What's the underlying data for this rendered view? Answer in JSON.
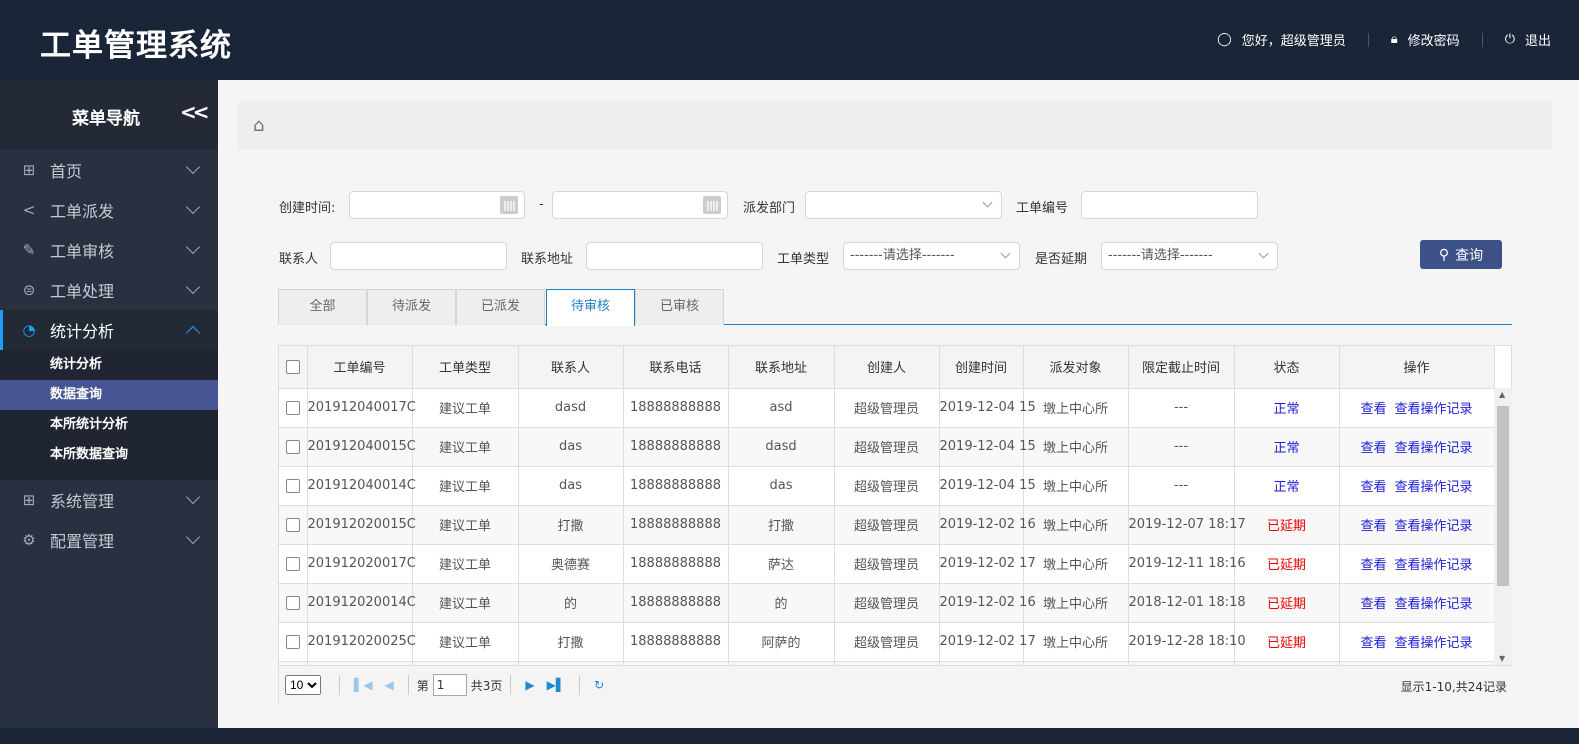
{
  "header": {
    "title": "工单管理系统",
    "greeting": "您好，超级管理员",
    "change_password": "修改密码",
    "logout": "退出"
  },
  "sidebar": {
    "title": "菜单导航",
    "items": [
      {
        "label": "首页",
        "icon": "grid-icon"
      },
      {
        "label": "工单派发",
        "icon": "share-icon"
      },
      {
        "label": "工单审核",
        "icon": "edit-icon"
      },
      {
        "label": "工单处理",
        "icon": "database-icon"
      },
      {
        "label": "统计分析",
        "icon": "pie-chart-icon",
        "expanded": true,
        "children": [
          {
            "label": "统计分析"
          },
          {
            "label": "数据查询",
            "selected": true
          },
          {
            "label": "本所统计分析"
          },
          {
            "label": "本所数据查询"
          }
        ]
      },
      {
        "label": "系统管理",
        "icon": "grid-icon"
      },
      {
        "label": "配置管理",
        "icon": "gear-icon"
      }
    ]
  },
  "filters": {
    "create_time": "创建时间:",
    "dash": "-",
    "dept": "派发部门",
    "order_no": "工单编号",
    "contact": "联系人",
    "address": "联系地址",
    "order_type": "工单类型",
    "order_type_value": "-------请选择-------",
    "delayed": "是否延期",
    "delayed_value": "-------请选择-------",
    "search": "查询"
  },
  "tabs": [
    "全部",
    "待派发",
    "已派发",
    "待审核",
    "已审核"
  ],
  "active_tab": "待审核",
  "table": {
    "columns": [
      "工单编号",
      "工单类型",
      "联系人",
      "联系电话",
      "联系地址",
      "创建人",
      "创建时间",
      "派发对象",
      "限定截止时间",
      "状态",
      "操作"
    ],
    "rows": [
      [
        "201912040017C",
        "建议工单",
        "dasd",
        "18888888888",
        "asd",
        "超级管理员",
        "2019-12-04 15",
        "墩上中心所",
        "---",
        "正常"
      ],
      [
        "201912040015C",
        "建议工单",
        "das",
        "18888888888",
        "dasd",
        "超级管理员",
        "2019-12-04 15",
        "墩上中心所",
        "---",
        "正常"
      ],
      [
        "201912040014C",
        "建议工单",
        "das",
        "18888888888",
        "das",
        "超级管理员",
        "2019-12-04 15",
        "墩上中心所",
        "---",
        "正常"
      ],
      [
        "201912020015C",
        "建议工单",
        "打撒",
        "18888888888",
        "打撒",
        "超级管理员",
        "2019-12-02 16",
        "墩上中心所",
        "2019-12-07 18:17",
        "已延期"
      ],
      [
        "201912020017C",
        "建议工单",
        "奥德赛",
        "18888888888",
        "萨达",
        "超级管理员",
        "2019-12-02 17",
        "墩上中心所",
        "2019-12-11 18:16",
        "已延期"
      ],
      [
        "201912020014C",
        "建议工单",
        "的",
        "18888888888",
        "的",
        "超级管理员",
        "2019-12-02 16",
        "墩上中心所",
        "2018-12-01 18:18",
        "已延期"
      ],
      [
        "201912020025C",
        "建议工单",
        "打撒",
        "18888888888",
        "阿萨的",
        "超级管理员",
        "2019-12-02 17",
        "墩上中心所",
        "2019-12-28 18:10",
        "已延期"
      ]
    ],
    "actions": [
      "查看",
      "查看操作记录"
    ]
  },
  "pager": {
    "page_size": "10",
    "page_prefix": "第",
    "page": "1",
    "total_pages": "共3页",
    "info": "显示1-10,共24记录"
  },
  "colors": {
    "header": "#1b2538",
    "sidebar": "#293140",
    "selected": "#465591",
    "accent": "#1e7fc1",
    "normal": "#1d1dd6",
    "delayed": "#e00000"
  }
}
